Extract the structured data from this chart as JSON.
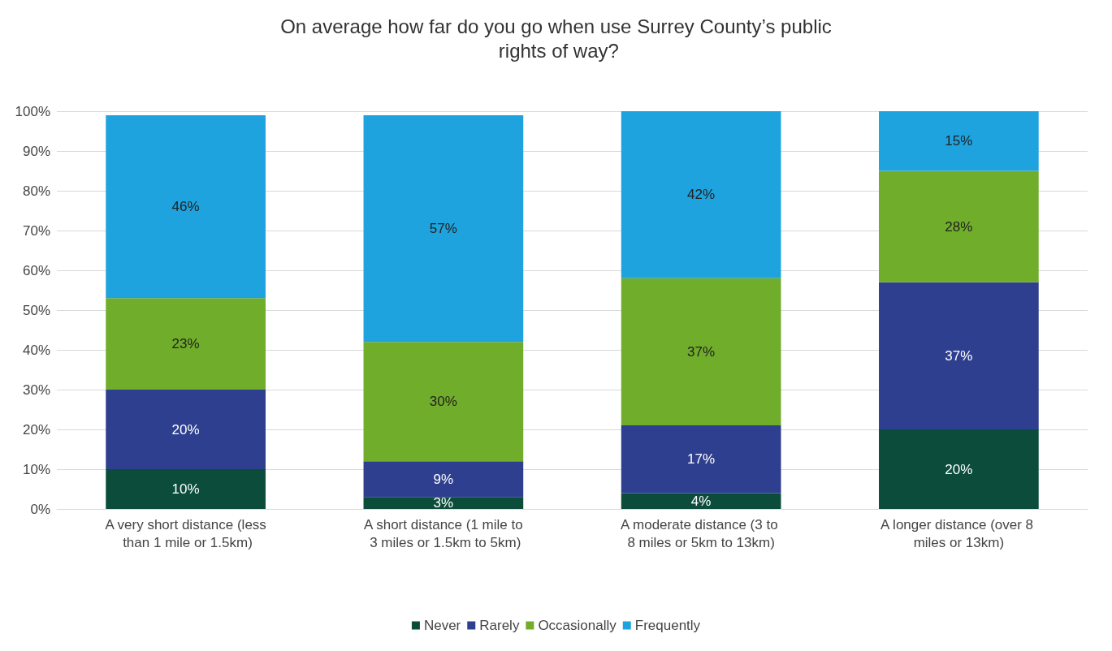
{
  "chart_data": {
    "type": "bar",
    "title": "On average how far do you go when use Surrey County’s public rights of way?",
    "categories": [
      "A very short distance (less than 1 mile or 1.5km)",
      "A short distance (1 mile to 3 miles or 1.5km to 5km)",
      "A moderate distance (3 to 8 miles or 5km to 13km)",
      "A longer distance (over 8 miles or 13km)"
    ],
    "stacked": true,
    "series": [
      {
        "name": "Never",
        "color": "#0b4d3a",
        "values": [
          10,
          3,
          4,
          20
        ],
        "value_labels": [
          "10%",
          "3%",
          "4%",
          "20%"
        ]
      },
      {
        "name": "Rarely",
        "color": "#2e3f8f",
        "values": [
          20,
          9,
          17,
          37
        ],
        "value_labels": [
          "20%",
          "9%",
          "17%",
          "37%"
        ]
      },
      {
        "name": "Occasionally",
        "color": "#70ad2a",
        "values": [
          23,
          30,
          37,
          28
        ],
        "value_labels": [
          "23%",
          "30%",
          "37%",
          "28%"
        ]
      },
      {
        "name": "Frequently",
        "color": "#1fa3df",
        "values": [
          46,
          57,
          42,
          15
        ],
        "value_labels": [
          "46%",
          "57%",
          "42%",
          "15%"
        ]
      }
    ],
    "ylim": [
      0,
      100
    ],
    "yticks": [
      {
        "value": 0,
        "label": "0%"
      },
      {
        "value": 10,
        "label": "10%"
      },
      {
        "value": 20,
        "label": "20%"
      },
      {
        "value": 30,
        "label": "30%"
      },
      {
        "value": 40,
        "label": "40%"
      },
      {
        "value": 50,
        "label": "50%"
      },
      {
        "value": 60,
        "label": "60%"
      },
      {
        "value": 70,
        "label": "70%"
      },
      {
        "value": 80,
        "label": "80%"
      },
      {
        "value": 90,
        "label": "90%"
      },
      {
        "value": 100,
        "label": "100%"
      }
    ],
    "grid": "y",
    "legend": "bottom"
  }
}
